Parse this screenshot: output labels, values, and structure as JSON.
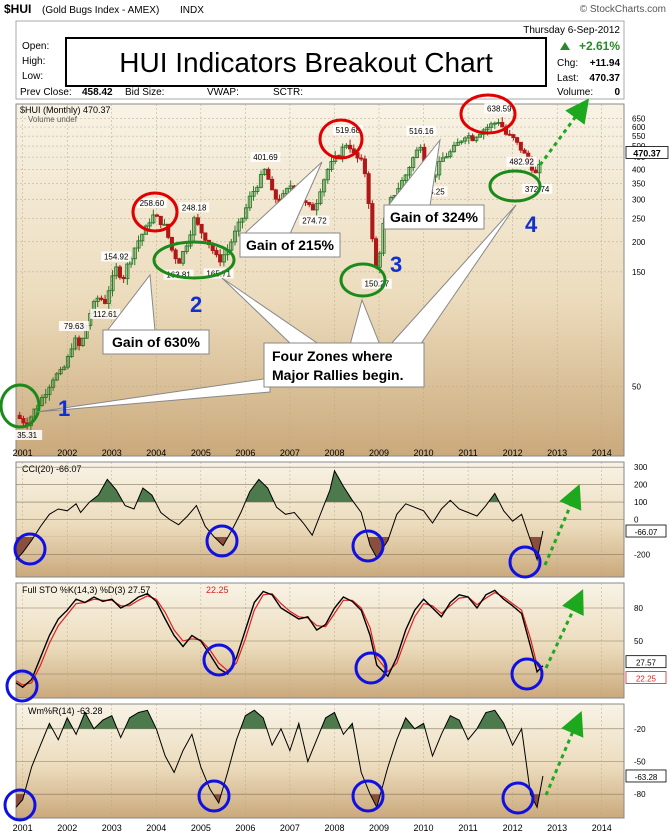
{
  "header": {
    "symbol": "$HUI",
    "name": "(Gold Bugs Index - AMEX)",
    "exchange": "INDX",
    "brand": "© StockCharts.com",
    "date": "Thursday  6-Sep-2012",
    "open_label": "Open:",
    "high_label": "High:",
    "low_label": "Low:",
    "prev_close_label": "Prev Close:",
    "prev_close": "458.42",
    "bid_size_label": "Bid Size:",
    "vwap_label": "VWAP:",
    "sctr_label": "SCTR:",
    "change_pct": "+2.61%",
    "chg_label": "Chg:",
    "chg": "+11.94",
    "last_label": "Last:",
    "last": "470.37",
    "volume_label": "Volume:",
    "volume": "0",
    "legend_main": "$HUI (Monthly) 470.37",
    "legend_volume": "Volume undef"
  },
  "title": "HUI Indicators Breakout Chart",
  "colors": {
    "panel_bg_top": "#f7f1e3",
    "panel_bg_bottom": "#c9ab80",
    "candle_up": "#2a7a2a",
    "candle_down": "#b01818",
    "red_circle": "#e00000",
    "green_ellipse": "#1a8a1a",
    "blue_circle": "#1010e0",
    "zone_number": "#1030d0",
    "dotted_arrow": "#1ea81e",
    "indicator_fill_pos": "#4d7a4d",
    "indicator_fill_neg": "#8a4f3c",
    "stoch_d": "#e02020"
  },
  "chart_data": [
    {
      "type": "candlestick",
      "title": "HUI Indicators Breakout Chart",
      "scale": "log",
      "period": "monthly",
      "x_ticks": [
        "2001",
        "2002",
        "2003",
        "2004",
        "2005",
        "2006",
        "2007",
        "2008",
        "2009",
        "2010",
        "2011",
        "2012",
        "2013",
        "2014"
      ],
      "y_ticks": [
        50,
        150,
        200,
        250,
        300,
        350,
        400,
        450,
        500,
        550,
        600,
        650
      ],
      "ylim": [
        30,
        720
      ],
      "last_value_label": "470.37",
      "price_path": [
        [
          2000.85,
          38
        ],
        [
          2001.0,
          36
        ],
        [
          2001.1,
          35.31
        ],
        [
          2001.3,
          41
        ],
        [
          2001.5,
          47
        ],
        [
          2001.7,
          55
        ],
        [
          2001.9,
          58
        ],
        [
          2002.05,
          68
        ],
        [
          2002.15,
          79.63
        ],
        [
          2002.3,
          72
        ],
        [
          2002.4,
          86
        ],
        [
          2002.55,
          106
        ],
        [
          2002.7,
          118
        ],
        [
          2002.85,
          112.61
        ],
        [
          2002.95,
          130
        ],
        [
          2003.1,
          154.92
        ],
        [
          2003.25,
          140
        ],
        [
          2003.4,
          170
        ],
        [
          2003.55,
          195
        ],
        [
          2003.7,
          218
        ],
        [
          2003.8,
          232
        ],
        [
          2003.9,
          258.6
        ],
        [
          2004.05,
          248
        ],
        [
          2004.2,
          230
        ],
        [
          2004.35,
          185
        ],
        [
          2004.5,
          163.81
        ],
        [
          2004.7,
          200
        ],
        [
          2004.85,
          248.18
        ],
        [
          2005.0,
          222
        ],
        [
          2005.2,
          195
        ],
        [
          2005.4,
          165.71
        ],
        [
          2005.6,
          185
        ],
        [
          2005.8,
          225
        ],
        [
          2005.95,
          255
        ],
        [
          2006.1,
          305
        ],
        [
          2006.3,
          355
        ],
        [
          2006.45,
          401.69
        ],
        [
          2006.6,
          320
        ],
        [
          2006.75,
          290
        ],
        [
          2006.9,
          320
        ],
        [
          2007.05,
          350
        ],
        [
          2007.2,
          310
        ],
        [
          2007.4,
          280
        ],
        [
          2007.55,
          274.72
        ],
        [
          2007.7,
          340
        ],
        [
          2007.85,
          400
        ],
        [
          2008.0,
          440
        ],
        [
          2008.15,
          480
        ],
        [
          2008.3,
          519.68
        ],
        [
          2008.45,
          455
        ],
        [
          2008.6,
          430
        ],
        [
          2008.7,
          380
        ],
        [
          2008.8,
          260
        ],
        [
          2008.88,
          175
        ],
        [
          2008.95,
          150.27
        ],
        [
          2009.1,
          235
        ],
        [
          2009.25,
          295
        ],
        [
          2009.45,
          340
        ],
        [
          2009.6,
          380
        ],
        [
          2009.75,
          440
        ],
        [
          2009.95,
          516.16
        ],
        [
          2010.05,
          410
        ],
        [
          2010.2,
          363.25
        ],
        [
          2010.4,
          440
        ],
        [
          2010.6,
          470
        ],
        [
          2010.8,
          520
        ],
        [
          2010.95,
          560
        ],
        [
          2011.1,
          540
        ],
        [
          2011.3,
          580
        ],
        [
          2011.5,
          610
        ],
        [
          2011.7,
          638.59
        ],
        [
          2011.85,
          560
        ],
        [
          2012.0,
          540
        ],
        [
          2012.2,
          482.92
        ],
        [
          2012.4,
          420
        ],
        [
          2012.55,
          372.74
        ],
        [
          2012.68,
          470.37
        ]
      ],
      "annotations": [
        {
          "text": "79.63"
        },
        {
          "text": "112.61"
        },
        {
          "text": "154.92"
        },
        {
          "text": "258.60"
        },
        {
          "text": "248.18"
        },
        {
          "text": "163.81"
        },
        {
          "text": "165.71"
        },
        {
          "text": "401.69"
        },
        {
          "text": "274.72"
        },
        {
          "text": "519.68"
        },
        {
          "text": "150.27"
        },
        {
          "text": "516.16"
        },
        {
          "text": "363.25"
        },
        {
          "text": "638.59"
        },
        {
          "text": "482.92"
        },
        {
          "text": "372.74"
        },
        {
          "text": "35.31"
        }
      ],
      "gain_labels": [
        "Gain of 630%",
        "Gain of 215%",
        "Gain of 324%"
      ],
      "callout": [
        "Four Zones where",
        "Major Rallies begin."
      ],
      "zone_numbers": [
        "1",
        "2",
        "3",
        "4"
      ]
    },
    {
      "type": "area",
      "title": "CCI(20) -66.07",
      "y_ticks": [
        300,
        200,
        100,
        0,
        -200
      ],
      "ylim": [
        -330,
        330
      ],
      "last_value_label": "-66.07",
      "x": [
        2000.85,
        2001.0,
        2001.2,
        2001.4,
        2001.6,
        2001.8,
        2002.0,
        2002.2,
        2002.3,
        2002.5,
        2002.7,
        2002.9,
        2003.1,
        2003.3,
        2003.5,
        2003.7,
        2003.9,
        2004.1,
        2004.3,
        2004.5,
        2004.7,
        2004.9,
        2005.1,
        2005.3,
        2005.5,
        2005.7,
        2005.9,
        2006.1,
        2006.3,
        2006.5,
        2006.7,
        2006.9,
        2007.1,
        2007.3,
        2007.5,
        2007.7,
        2007.9,
        2008.0,
        2008.2,
        2008.4,
        2008.6,
        2008.8,
        2008.95,
        2009.2,
        2009.4,
        2009.6,
        2009.8,
        2010.0,
        2010.2,
        2010.4,
        2010.6,
        2010.8,
        2011.0,
        2011.2,
        2011.4,
        2011.6,
        2011.8,
        2012.0,
        2012.2,
        2012.4,
        2012.55,
        2012.68
      ],
      "values": [
        -230,
        -190,
        -120,
        -40,
        30,
        60,
        50,
        90,
        40,
        100,
        140,
        230,
        170,
        80,
        60,
        180,
        140,
        40,
        0,
        -30,
        20,
        80,
        -40,
        -100,
        -150,
        -60,
        40,
        160,
        230,
        180,
        70,
        30,
        40,
        -20,
        -90,
        40,
        170,
        280,
        190,
        110,
        40,
        -150,
        -220,
        -120,
        30,
        90,
        70,
        50,
        -20,
        60,
        110,
        60,
        40,
        20,
        80,
        150,
        50,
        -10,
        30,
        -120,
        -230,
        -66.07
      ]
    },
    {
      "type": "line",
      "title": "Full STO %K(14,3) %D(3) 27.57, 22.25",
      "series_names": [
        "Full STO %K(14,3) %D(3) 27.57",
        "22.25"
      ],
      "y_ticks": [
        80,
        50,
        20
      ],
      "ylim": [
        0,
        100
      ],
      "last_value_labels": [
        "27.57",
        "22.25"
      ],
      "x": [
        2000.85,
        2001.0,
        2001.2,
        2001.4,
        2001.6,
        2001.8,
        2002.0,
        2002.2,
        2002.4,
        2002.6,
        2002.8,
        2003.0,
        2003.2,
        2003.4,
        2003.6,
        2003.8,
        2004.0,
        2004.2,
        2004.4,
        2004.6,
        2004.8,
        2005.0,
        2005.2,
        2005.4,
        2005.6,
        2005.8,
        2006.0,
        2006.2,
        2006.4,
        2006.6,
        2006.8,
        2007.0,
        2007.2,
        2007.4,
        2007.6,
        2007.8,
        2008.0,
        2008.2,
        2008.4,
        2008.6,
        2008.8,
        2008.95,
        2009.2,
        2009.4,
        2009.6,
        2009.8,
        2010.0,
        2010.2,
        2010.4,
        2010.6,
        2010.8,
        2011.0,
        2011.2,
        2011.4,
        2011.6,
        2011.8,
        2012.0,
        2012.2,
        2012.4,
        2012.55,
        2012.68
      ],
      "k": [
        12,
        8,
        15,
        35,
        55,
        70,
        78,
        88,
        85,
        90,
        86,
        88,
        80,
        84,
        90,
        93,
        86,
        70,
        55,
        45,
        55,
        50,
        38,
        25,
        20,
        35,
        60,
        85,
        95,
        92,
        80,
        75,
        70,
        72,
        60,
        65,
        80,
        90,
        86,
        78,
        55,
        28,
        18,
        35,
        60,
        78,
        88,
        80,
        72,
        85,
        92,
        90,
        80,
        92,
        96,
        88,
        82,
        75,
        45,
        22,
        27.57
      ],
      "d": [
        14,
        10,
        12,
        28,
        48,
        64,
        74,
        84,
        85,
        88,
        87,
        87,
        82,
        82,
        87,
        91,
        88,
        76,
        60,
        50,
        52,
        51,
        42,
        30,
        23,
        30,
        52,
        78,
        92,
        93,
        84,
        77,
        72,
        71,
        64,
        63,
        75,
        87,
        87,
        80,
        62,
        35,
        22,
        30,
        52,
        72,
        84,
        82,
        75,
        82,
        89,
        90,
        83,
        89,
        94,
        90,
        84,
        78,
        52,
        28,
        22.25
      ]
    },
    {
      "type": "area",
      "title": "Wm%R(14) -63.28",
      "y_ticks": [
        -20,
        -50,
        -80
      ],
      "ylim": [
        -100,
        0
      ],
      "last_value_label": "-63.28",
      "x": [
        2000.85,
        2001.0,
        2001.2,
        2001.4,
        2001.6,
        2001.8,
        2002.0,
        2002.2,
        2002.4,
        2002.6,
        2002.8,
        2003.0,
        2003.2,
        2003.4,
        2003.6,
        2003.8,
        2004.0,
        2004.2,
        2004.4,
        2004.6,
        2004.8,
        2005.0,
        2005.2,
        2005.4,
        2005.6,
        2005.8,
        2006.0,
        2006.2,
        2006.4,
        2006.6,
        2006.8,
        2007.0,
        2007.2,
        2007.4,
        2007.6,
        2007.8,
        2008.0,
        2008.2,
        2008.4,
        2008.6,
        2008.8,
        2008.95,
        2009.2,
        2009.4,
        2009.6,
        2009.8,
        2010.0,
        2010.2,
        2010.4,
        2010.6,
        2010.8,
        2011.0,
        2011.2,
        2011.4,
        2011.6,
        2011.8,
        2012.0,
        2012.2,
        2012.4,
        2012.55,
        2012.68
      ],
      "values": [
        -92,
        -85,
        -55,
        -35,
        -15,
        -30,
        -10,
        -25,
        -5,
        -20,
        -12,
        -8,
        -28,
        -10,
        -5,
        -3,
        -20,
        -45,
        -60,
        -40,
        -25,
        -55,
        -75,
        -88,
        -60,
        -30,
        -8,
        -3,
        -10,
        -35,
        -20,
        -40,
        -15,
        -50,
        -30,
        -10,
        -5,
        -25,
        -15,
        -60,
        -80,
        -92,
        -55,
        -30,
        -10,
        -20,
        -15,
        -45,
        -25,
        -8,
        -12,
        -30,
        -20,
        -5,
        -3,
        -15,
        -35,
        -20,
        -80,
        -92,
        -63.28
      ]
    }
  ]
}
